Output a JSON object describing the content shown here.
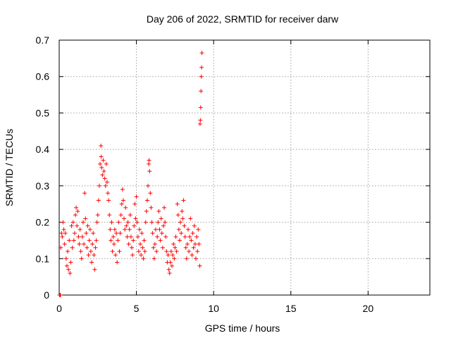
{
  "chart_data": {
    "type": "scatter",
    "title": "Day 206 of 2022, SRMTID for receiver darw",
    "xlabel": "GPS time / hours",
    "ylabel": "SRMTID / TECUs",
    "xlim": [
      0,
      24
    ],
    "ylim": [
      0,
      0.7
    ],
    "xticks": [
      0,
      5,
      10,
      15,
      20
    ],
    "xtick_labels": [
      "0",
      "5",
      "10",
      "15",
      "20"
    ],
    "yticks": [
      0,
      0.1,
      0.2,
      0.3,
      0.4,
      0.5,
      0.6,
      0.7
    ],
    "ytick_labels": [
      "0",
      "0.1",
      "0.2",
      "0.3",
      "0.4",
      "0.5",
      "0.6",
      "0.7"
    ],
    "grid": true,
    "marker": "+",
    "series": [
      {
        "name": "SRMTID",
        "color": "#ff0000",
        "points": [
          [
            0.02,
            0.0
          ],
          [
            0.05,
            0.0
          ],
          [
            0.08,
            0.0
          ],
          [
            0.1,
            0.13
          ],
          [
            0.15,
            0.17
          ],
          [
            0.2,
            0.16
          ],
          [
            0.25,
            0.2
          ],
          [
            0.3,
            0.18
          ],
          [
            0.35,
            0.14
          ],
          [
            0.4,
            0.17
          ],
          [
            0.45,
            0.1
          ],
          [
            0.5,
            0.08
          ],
          [
            0.55,
            0.12
          ],
          [
            0.6,
            0.07
          ],
          [
            0.65,
            0.15
          ],
          [
            0.7,
            0.06
          ],
          [
            0.75,
            0.09
          ],
          [
            0.8,
            0.19
          ],
          [
            0.85,
            0.13
          ],
          [
            0.9,
            0.2
          ],
          [
            0.95,
            0.15
          ],
          [
            1.0,
            0.17
          ],
          [
            1.05,
            0.22
          ],
          [
            1.1,
            0.24
          ],
          [
            1.15,
            0.19
          ],
          [
            1.2,
            0.23
          ],
          [
            1.25,
            0.16
          ],
          [
            1.3,
            0.14
          ],
          [
            1.35,
            0.18
          ],
          [
            1.4,
            0.12
          ],
          [
            1.45,
            0.1
          ],
          [
            1.5,
            0.16
          ],
          [
            1.55,
            0.2
          ],
          [
            1.6,
            0.14
          ],
          [
            1.65,
            0.28
          ],
          [
            1.7,
            0.21
          ],
          [
            1.75,
            0.17
          ],
          [
            1.8,
            0.13
          ],
          [
            1.85,
            0.19
          ],
          [
            1.9,
            0.11
          ],
          [
            1.95,
            0.15
          ],
          [
            2.0,
            0.18
          ],
          [
            2.05,
            0.12
          ],
          [
            2.1,
            0.09
          ],
          [
            2.15,
            0.14
          ],
          [
            2.2,
            0.17
          ],
          [
            2.25,
            0.11
          ],
          [
            2.3,
            0.07
          ],
          [
            2.35,
            0.13
          ],
          [
            2.4,
            0.15
          ],
          [
            2.45,
            0.2
          ],
          [
            2.5,
            0.22
          ],
          [
            2.55,
            0.26
          ],
          [
            2.6,
            0.3
          ],
          [
            2.65,
            0.36
          ],
          [
            2.7,
            0.41
          ],
          [
            2.72,
            0.38
          ],
          [
            2.75,
            0.35
          ],
          [
            2.8,
            0.33
          ],
          [
            2.85,
            0.37
          ],
          [
            2.9,
            0.34
          ],
          [
            2.95,
            0.32
          ],
          [
            3.0,
            0.3
          ],
          [
            3.05,
            0.36
          ],
          [
            3.1,
            0.31
          ],
          [
            3.15,
            0.28
          ],
          [
            3.2,
            0.26
          ],
          [
            3.25,
            0.22
          ],
          [
            3.3,
            0.18
          ],
          [
            3.35,
            0.15
          ],
          [
            3.4,
            0.2
          ],
          [
            3.45,
            0.12
          ],
          [
            3.5,
            0.16
          ],
          [
            3.55,
            0.14
          ],
          [
            3.6,
            0.18
          ],
          [
            3.65,
            0.11
          ],
          [
            3.7,
            0.17
          ],
          [
            3.75,
            0.09
          ],
          [
            3.8,
            0.15
          ],
          [
            3.85,
            0.2
          ],
          [
            3.9,
            0.12
          ],
          [
            3.95,
            0.17
          ],
          [
            4.0,
            0.22
          ],
          [
            4.05,
            0.25
          ],
          [
            4.1,
            0.29
          ],
          [
            4.15,
            0.26
          ],
          [
            4.2,
            0.21
          ],
          [
            4.25,
            0.18
          ],
          [
            4.3,
            0.24
          ],
          [
            4.35,
            0.19
          ],
          [
            4.4,
            0.16
          ],
          [
            4.45,
            0.2
          ],
          [
            4.5,
            0.14
          ],
          [
            4.55,
            0.18
          ],
          [
            4.6,
            0.22
          ],
          [
            4.65,
            0.16
          ],
          [
            4.7,
            0.13
          ],
          [
            4.75,
            0.11
          ],
          [
            4.8,
            0.15
          ],
          [
            4.85,
            0.19
          ],
          [
            4.9,
            0.25
          ],
          [
            4.95,
            0.21
          ],
          [
            5.0,
            0.27
          ],
          [
            5.05,
            0.2
          ],
          [
            5.1,
            0.16
          ],
          [
            5.15,
            0.12
          ],
          [
            5.2,
            0.18
          ],
          [
            5.25,
            0.14
          ],
          [
            5.3,
            0.11
          ],
          [
            5.35,
            0.17
          ],
          [
            5.4,
            0.13
          ],
          [
            5.45,
            0.1
          ],
          [
            5.5,
            0.15
          ],
          [
            5.55,
            0.12
          ],
          [
            5.6,
            0.2
          ],
          [
            5.65,
            0.23
          ],
          [
            5.7,
            0.26
          ],
          [
            5.75,
            0.3
          ],
          [
            5.8,
            0.36
          ],
          [
            5.82,
            0.37
          ],
          [
            5.85,
            0.34
          ],
          [
            5.9,
            0.28
          ],
          [
            5.95,
            0.24
          ],
          [
            6.0,
            0.2
          ],
          [
            6.05,
            0.17
          ],
          [
            6.1,
            0.13
          ],
          [
            6.15,
            0.1
          ],
          [
            6.2,
            0.14
          ],
          [
            6.25,
            0.18
          ],
          [
            6.3,
            0.12
          ],
          [
            6.35,
            0.16
          ],
          [
            6.4,
            0.2
          ],
          [
            6.45,
            0.23
          ],
          [
            6.5,
            0.18
          ],
          [
            6.55,
            0.15
          ],
          [
            6.6,
            0.21
          ],
          [
            6.65,
            0.17
          ],
          [
            6.7,
            0.13
          ],
          [
            6.75,
            0.19
          ],
          [
            6.8,
            0.24
          ],
          [
            6.85,
            0.2
          ],
          [
            6.9,
            0.16
          ],
          [
            6.95,
            0.12
          ],
          [
            7.0,
            0.09
          ],
          [
            7.05,
            0.11
          ],
          [
            7.1,
            0.07
          ],
          [
            7.15,
            0.06
          ],
          [
            7.2,
            0.09
          ],
          [
            7.25,
            0.12
          ],
          [
            7.3,
            0.08
          ],
          [
            7.35,
            0.11
          ],
          [
            7.4,
            0.14
          ],
          [
            7.45,
            0.1
          ],
          [
            7.5,
            0.13
          ],
          [
            7.55,
            0.16
          ],
          [
            7.6,
            0.12
          ],
          [
            7.65,
            0.25
          ],
          [
            7.7,
            0.22
          ],
          [
            7.75,
            0.18
          ],
          [
            7.8,
            0.15
          ],
          [
            7.85,
            0.2
          ],
          [
            7.9,
            0.17
          ],
          [
            7.95,
            0.23
          ],
          [
            8.0,
            0.21
          ],
          [
            8.05,
            0.26
          ],
          [
            8.1,
            0.19
          ],
          [
            8.15,
            0.16
          ],
          [
            8.2,
            0.13
          ],
          [
            8.25,
            0.1
          ],
          [
            8.3,
            0.14
          ],
          [
            8.35,
            0.18
          ],
          [
            8.4,
            0.12
          ],
          [
            8.45,
            0.16
          ],
          [
            8.5,
            0.21
          ],
          [
            8.55,
            0.15
          ],
          [
            8.6,
            0.11
          ],
          [
            8.65,
            0.17
          ],
          [
            8.7,
            0.13
          ],
          [
            8.75,
            0.19
          ],
          [
            8.8,
            0.14
          ],
          [
            8.85,
            0.1
          ],
          [
            8.9,
            0.16
          ],
          [
            8.95,
            0.12
          ],
          [
            9.0,
            0.18
          ],
          [
            9.05,
            0.14
          ],
          [
            9.1,
            0.08
          ],
          [
            9.12,
            0.47
          ],
          [
            9.14,
            0.48
          ],
          [
            9.16,
            0.515
          ],
          [
            9.18,
            0.56
          ],
          [
            9.2,
            0.6
          ],
          [
            9.22,
            0.625
          ],
          [
            9.24,
            0.665
          ]
        ]
      }
    ]
  }
}
